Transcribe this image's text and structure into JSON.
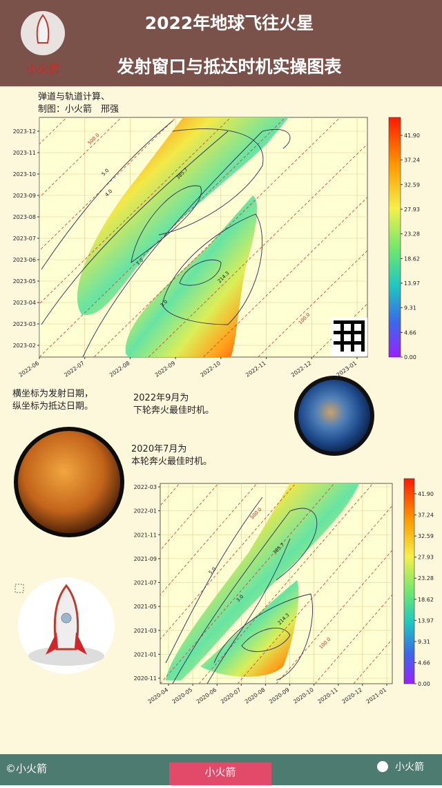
{
  "header": {
    "logo_label": "小火箭",
    "title_line1": "2022年地球飞往火星",
    "title_line2": "发射窗口与抵达时机实操图表"
  },
  "credits": [
    "弹道与轨道计算、",
    "制图：小火箭　邢强"
  ],
  "plot_2022": {
    "x_ticks": [
      "2022-06",
      "2022-07",
      "2022-08",
      "2022-09",
      "2022-10",
      "2022-11",
      "2022-12",
      "2023-01"
    ],
    "y_ticks": [
      "2023-12",
      "2023-11",
      "2023-10",
      "2023-09",
      "2023-08",
      "2023-07",
      "2023-06",
      "2023-05",
      "2023-04",
      "2023-03",
      "2023-02"
    ],
    "colorbar_ticks": [
      "41.90",
      "37.24",
      "32.59",
      "27.93",
      "23.28",
      "18.62",
      "13.97",
      "9.31",
      "4.66",
      "0.00"
    ],
    "contour_labels": [
      "500.0",
      "100.0",
      "5.0",
      "4.0",
      "3.0",
      "3.0",
      "385.7",
      "214.3"
    ]
  },
  "notes": {
    "axes": [
      "横坐标为发射日期，",
      "纵坐标为抵达日期。"
    ],
    "next": [
      "2022年9月为",
      "下轮奔火最佳时机。"
    ],
    "current": [
      "2020年7月为",
      "本轮奔火最佳时机。"
    ]
  },
  "plot_2020": {
    "x_ticks": [
      "2020-04",
      "2020-05",
      "2020-06",
      "2020-07",
      "2020-08",
      "2020-09",
      "2020-10",
      "2020-11",
      "2020-12",
      "2021-01"
    ],
    "y_ticks": [
      "2022-03",
      "2022-01",
      "2021-11",
      "2021-09",
      "2021-07",
      "2021-05",
      "2021-03",
      "2021-01",
      "2020-11"
    ],
    "colorbar_ticks": [
      "41.90",
      "37.24",
      "32.59",
      "27.93",
      "23.28",
      "18.62",
      "13.97",
      "9.31",
      "4.66",
      "0.00"
    ],
    "contour_labels": [
      "500.0",
      "100.0",
      "5.0",
      "3.0",
      "385.7",
      "214.3"
    ]
  },
  "footer": {
    "copyright": "©小火箭",
    "center": "小火箭",
    "account": "小火箭"
  }
}
